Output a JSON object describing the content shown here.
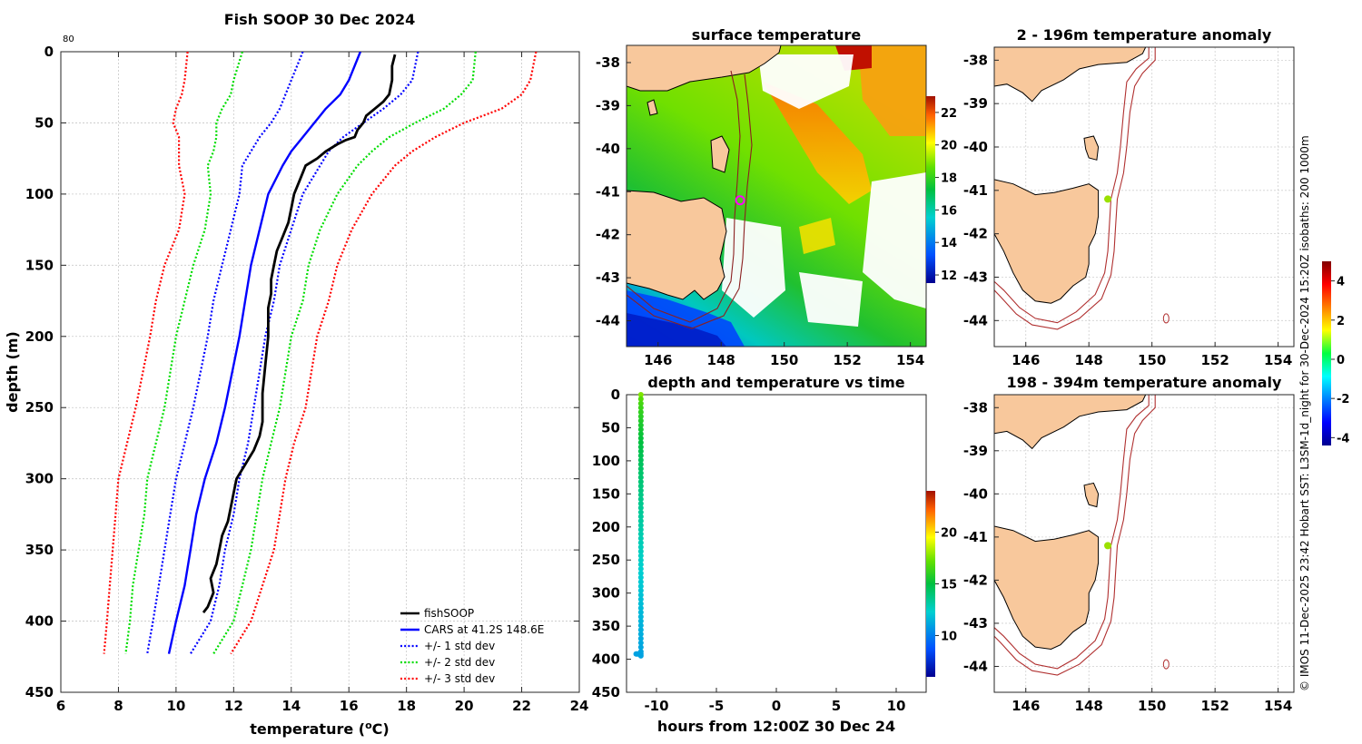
{
  "chart_data": [
    {
      "id": "profile",
      "type": "line",
      "title": "Fish SOOP 30 Dec 2024",
      "xlabel": "temperature (",
      "xlabel_sup": "o",
      "xlabel_tail": "C)",
      "ylabel": "depth (m)",
      "xlim": [
        6,
        24
      ],
      "ylim": [
        0,
        450
      ],
      "y_reversed": true,
      "grid": true,
      "corner_label": "80",
      "x_ticks": [
        6,
        8,
        10,
        12,
        14,
        16,
        18,
        20,
        22,
        24
      ],
      "y_ticks": [
        0,
        50,
        100,
        150,
        200,
        250,
        300,
        350,
        400,
        450
      ],
      "legend_position": "bottom-right",
      "legend": [
        {
          "label": "fishSOOP",
          "color": "#000000",
          "style": "solid"
        },
        {
          "label": "CARS at 41.2S 148.6E",
          "color": "#0000ff",
          "style": "solid"
        },
        {
          "label": "+/- 1 std dev",
          "color": "#0000ff",
          "style": "dotted"
        },
        {
          "label": "+/- 2 std dev",
          "color": "#00dd00",
          "style": "dotted"
        },
        {
          "label": "+/- 3 std dev",
          "color": "#ff0000",
          "style": "dotted"
        }
      ],
      "depth": [
        0,
        20,
        30,
        40,
        50,
        60,
        70,
        80,
        100,
        125,
        150,
        175,
        200,
        250,
        275,
        300,
        325,
        350,
        375,
        400,
        423
      ],
      "series": [
        {
          "name": "CARS mean",
          "color": "#0000ff",
          "style": "solid",
          "values": [
            16.4,
            16.0,
            15.7,
            15.2,
            14.8,
            14.4,
            14.0,
            13.7,
            13.2,
            12.9,
            12.6,
            12.4,
            12.2,
            11.7,
            11.4,
            11.0,
            10.7,
            10.5,
            10.3,
            10.0,
            9.75
          ]
        },
        {
          "name": "CARS -1 std",
          "color": "#0000ff",
          "style": "dotted",
          "values": [
            14.4,
            14.0,
            13.8,
            13.6,
            13.3,
            12.9,
            12.6,
            12.3,
            12.2,
            11.9,
            11.6,
            11.3,
            11.1,
            10.6,
            10.3,
            10.0,
            9.8,
            9.6,
            9.4,
            9.2,
            9.0
          ]
        },
        {
          "name": "CARS +1 std",
          "color": "#0000ff",
          "style": "dotted",
          "values": [
            18.4,
            18.2,
            17.8,
            17.2,
            16.5,
            15.8,
            15.3,
            15.0,
            14.4,
            14.0,
            13.6,
            13.4,
            13.1,
            12.7,
            12.5,
            12.2,
            12.0,
            11.7,
            11.5,
            11.2,
            10.5
          ]
        },
        {
          "name": "CARS -2 std",
          "color": "#00dd00",
          "style": "dotted",
          "values": [
            12.3,
            12.0,
            11.9,
            11.6,
            11.4,
            11.4,
            11.3,
            11.1,
            11.2,
            11.0,
            10.6,
            10.3,
            10.0,
            9.6,
            9.3,
            9.0,
            8.9,
            8.7,
            8.5,
            8.4,
            8.25
          ]
        },
        {
          "name": "CARS +2 std",
          "color": "#00dd00",
          "style": "dotted",
          "values": [
            20.4,
            20.3,
            19.9,
            19.3,
            18.3,
            17.4,
            16.8,
            16.3,
            15.6,
            15.0,
            14.6,
            14.4,
            14.0,
            13.6,
            13.3,
            13.0,
            12.8,
            12.6,
            12.3,
            12.0,
            11.3
          ]
        },
        {
          "name": "CARS -3 std",
          "color": "#ff0000",
          "style": "dotted",
          "values": [
            10.4,
            10.3,
            10.2,
            10.0,
            9.9,
            10.1,
            10.1,
            10.1,
            10.3,
            10.1,
            9.6,
            9.3,
            9.1,
            8.6,
            8.3,
            8.0,
            7.9,
            7.8,
            7.7,
            7.6,
            7.5
          ]
        },
        {
          "name": "CARS +3 std",
          "color": "#ff0000",
          "style": "dotted",
          "values": [
            22.5,
            22.3,
            22.0,
            21.3,
            20.0,
            19.0,
            18.2,
            17.6,
            16.8,
            16.1,
            15.6,
            15.3,
            14.9,
            14.5,
            14.1,
            13.8,
            13.6,
            13.4,
            13.0,
            12.6,
            11.9
          ]
        }
      ],
      "observed": {
        "name": "fishSOOP",
        "color": "#000000",
        "depth": [
          2,
          10,
          20,
          30,
          35,
          40,
          45,
          50,
          55,
          60,
          62,
          65,
          70,
          75,
          80,
          90,
          100,
          110,
          120,
          130,
          140,
          150,
          160,
          170,
          180,
          200,
          220,
          240,
          260,
          270,
          280,
          290,
          300,
          310,
          320,
          330,
          340,
          350,
          360,
          370,
          380,
          390,
          394
        ],
        "values": [
          17.6,
          17.5,
          17.5,
          17.4,
          17.2,
          16.9,
          16.6,
          16.5,
          16.3,
          16.2,
          15.9,
          15.6,
          15.2,
          14.9,
          14.5,
          14.3,
          14.1,
          14.0,
          13.9,
          13.7,
          13.5,
          13.4,
          13.3,
          13.3,
          13.2,
          13.2,
          13.1,
          13.0,
          13.0,
          12.9,
          12.7,
          12.4,
          12.1,
          12.0,
          11.9,
          11.8,
          11.6,
          11.5,
          11.4,
          11.2,
          11.3,
          11.1,
          10.95
        ]
      }
    },
    {
      "id": "sst_map",
      "type": "heatmap",
      "title": "surface temperature",
      "x_ticks": [
        146,
        148,
        150,
        152,
        154
      ],
      "y_ticks": [
        -38,
        -39,
        -40,
        -41,
        -42,
        -43,
        -44
      ],
      "lon_range": [
        145.0,
        154.5
      ],
      "lat_range": [
        -44.6,
        -37.6
      ],
      "marker": {
        "lon": 148.6,
        "lat": -41.2,
        "color": "#ff00ff"
      },
      "colorbar": {
        "range": [
          11.5,
          23
        ],
        "ticks": [
          12,
          14,
          16,
          18,
          20,
          22
        ]
      }
    },
    {
      "id": "time_depth",
      "type": "scatter",
      "title": "depth and temperature vs time",
      "xlabel": "hours from 12:00Z 30 Dec 24",
      "xlim": [
        -12.5,
        12.5
      ],
      "ylim": [
        0,
        450
      ],
      "y_reversed": true,
      "x_ticks": [
        -10,
        -5,
        0,
        5,
        10
      ],
      "y_ticks": [
        0,
        50,
        100,
        150,
        200,
        250,
        300,
        350,
        400,
        450
      ],
      "grid": false,
      "color_variable": "temperature",
      "colorbar": {
        "range": [
          6,
          24
        ],
        "ticks": [
          10,
          15,
          20
        ]
      },
      "descent": {
        "hours": -11.3,
        "depth": [
          0,
          395
        ],
        "temp_top": 17.6,
        "temp_bottom": 11.0
      },
      "bottom_segment": {
        "hours": [
          -11.7,
          -11.3
        ],
        "depth": 392,
        "temp": 11.0
      }
    },
    {
      "id": "anom_shallow",
      "type": "heatmap",
      "title": "2 - 196m temperature anomaly",
      "x_ticks": [
        146,
        148,
        150,
        152,
        154
      ],
      "y_ticks": [
        -38,
        -39,
        -40,
        -41,
        -42,
        -43,
        -44
      ],
      "marker": {
        "lon": 148.6,
        "lat": -41.2,
        "anomaly": 0.3
      }
    },
    {
      "id": "anom_deep",
      "type": "heatmap",
      "title": "198 - 394m temperature anomaly",
      "x_ticks": [
        146,
        148,
        150,
        152,
        154
      ],
      "y_ticks": [
        -38,
        -39,
        -40,
        -41,
        -42,
        -43,
        -44
      ],
      "marker": {
        "lon": 148.6,
        "lat": -41.2,
        "anomaly": 0.3
      },
      "colorbar": {
        "range": [
          -4.4,
          5.0
        ],
        "ticks": [
          4,
          2,
          0,
          -2,
          -4
        ]
      }
    }
  ],
  "credit": "© IMOS 11-Dec-2025 23:42 Hobart SST: L3SM-1d_night for 30-Dec-2024 15:20Z isobaths: 200  1000m"
}
